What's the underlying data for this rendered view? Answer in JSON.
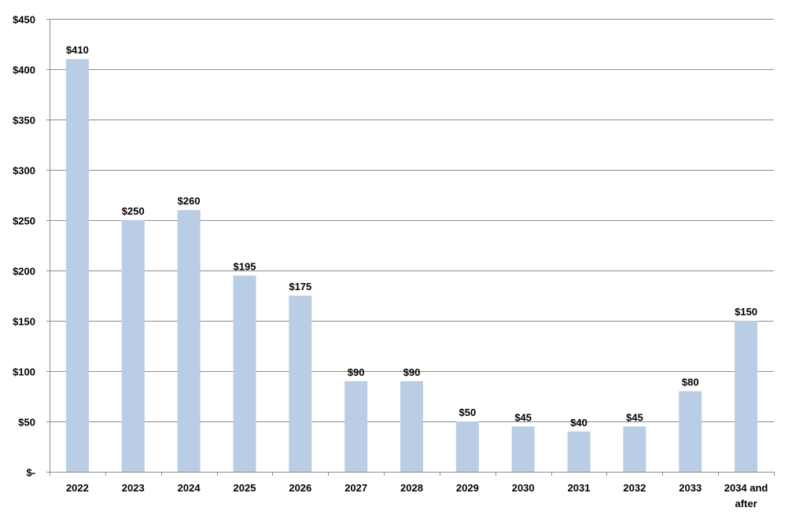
{
  "chart_data": {
    "type": "bar",
    "title": "",
    "xlabel": "",
    "ylabel": "",
    "categories": [
      "2022",
      "2023",
      "2024",
      "2025",
      "2026",
      "2027",
      "2028",
      "2029",
      "2030",
      "2031",
      "2032",
      "2033",
      "2034 and after"
    ],
    "values": [
      410,
      250,
      260,
      195,
      175,
      90,
      90,
      50,
      45,
      40,
      45,
      80,
      150
    ],
    "data_labels": [
      "$410",
      "$250",
      "$260",
      "$195",
      "$175",
      "$90",
      "$90",
      "$50",
      "$45",
      "$40",
      "$45",
      "$80",
      "$150"
    ],
    "ylim": [
      0,
      450
    ],
    "y_ticks": [
      0,
      50,
      100,
      150,
      200,
      250,
      300,
      350,
      400,
      450
    ],
    "y_tick_labels": [
      "$-",
      "$50",
      "$100",
      "$150",
      "$200",
      "$250",
      "$300",
      "$350",
      "$400",
      "$450"
    ],
    "grid": true,
    "legend": "none",
    "colors": {
      "bar": "#b9cde5",
      "grid": "#8c8c8c",
      "axis": "#8c8c8c",
      "text": "#000000"
    }
  }
}
